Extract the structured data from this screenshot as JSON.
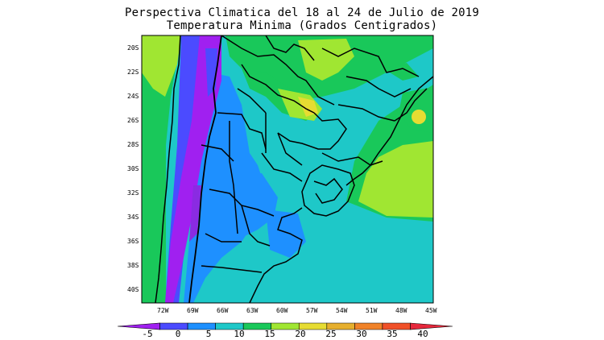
{
  "map": {
    "title_line1": "Perspectiva Climatica del 18 al 24 de Julio de 2019",
    "title_line2": "Temperatura Minima (Grados Centigrados)",
    "lat_labels": [
      "20S",
      "22S",
      "24S",
      "26S",
      "28S",
      "30S",
      "32S",
      "34S",
      "36S",
      "38S",
      "40S"
    ],
    "lon_labels": [
      "72W",
      "69W",
      "66W",
      "63W",
      "60W",
      "57W",
      "54W",
      "51W",
      "48W",
      "45W"
    ],
    "colorbar": {
      "ticks": [
        "-5",
        "0",
        "5",
        "10",
        "15",
        "20",
        "25",
        "30",
        "35",
        "40"
      ],
      "colors": [
        "#a020f0",
        "#4b4bff",
        "#1e90ff",
        "#1ec8c8",
        "#19c85a",
        "#a0e632",
        "#e6dc32",
        "#e6af2d",
        "#f08228",
        "#f05028",
        "#e6283c"
      ]
    }
  }
}
